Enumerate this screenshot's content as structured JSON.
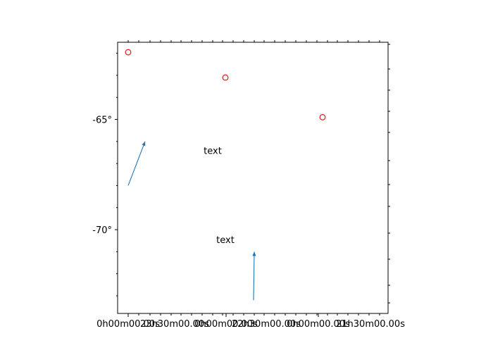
{
  "chart_data": {
    "type": "scatter",
    "projection": "celestial (RA / Dec)",
    "x_tick_labels": [
      "0h00m00.00s",
      "23h30m00.00s",
      "0h00m00.00s",
      "22h30m00.00s",
      "0h00m00.00s",
      "21h30m00.00s"
    ],
    "y_tick_labels": [
      "-65°",
      "-70°"
    ],
    "y_ticks": [
      -65,
      -70
    ],
    "ylim": [
      -73.8,
      -61.5
    ],
    "grid": false,
    "scatter_points": [
      {
        "ra_hours": 0.0,
        "dec": -61.95
      },
      {
        "ra_hours": 23.0,
        "dec": -63.1
      },
      {
        "ra_hours": 22.0,
        "dec": -64.9
      }
    ],
    "annotations": [
      {
        "text": "text",
        "dec": -66.4
      },
      {
        "text": "text",
        "dec": -70.45
      }
    ],
    "arrows": [
      {
        "from_dec": -68.0,
        "to_dec": -66.0
      },
      {
        "from_dec": -73.2,
        "to_dec": -71.0
      }
    ],
    "colors": {
      "markers": "#e8191a",
      "arrows": "#1f77b4",
      "axes": "#000000"
    }
  }
}
